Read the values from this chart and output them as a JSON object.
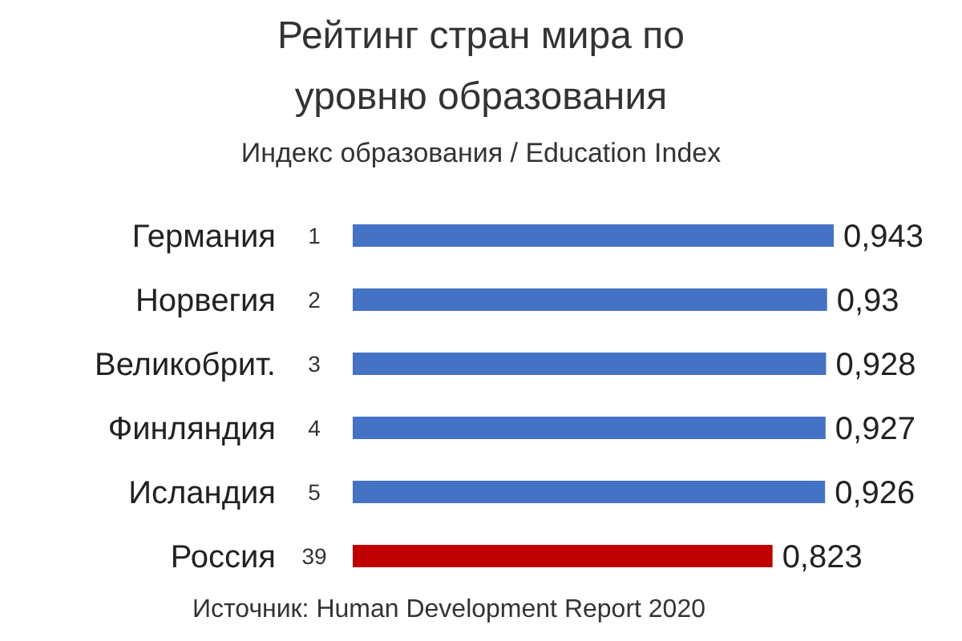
{
  "chart_data": {
    "type": "bar",
    "orientation": "horizontal",
    "title": "Рейтинг стран мира по уровню образования",
    "subtitle": "Индекс образования / Education Index",
    "categories": [
      "Германия",
      "Норвегия",
      "Великобрит.",
      "Финляндия",
      "Исландия",
      "Россия"
    ],
    "values": [
      0.943,
      0.93,
      0.928,
      0.927,
      0.926,
      0.823
    ],
    "value_labels": [
      "0,943",
      "0,93",
      "0,928",
      "0,927",
      "0,926",
      "0,823"
    ],
    "colors": [
      "#4472c4",
      "#4472c4",
      "#4472c4",
      "#4472c4",
      "#4472c4",
      "#c00000"
    ],
    "annotations": [
      "1",
      "2",
      "3",
      "4",
      "5",
      "39",
      "Источник: Human Development Report 2020"
    ]
  }
}
